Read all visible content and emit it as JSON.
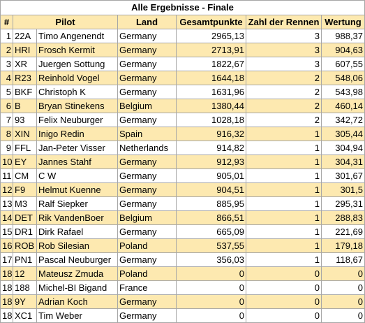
{
  "title": "Alle Ergebnisse - Finale",
  "columns": [
    "#",
    "Pilot",
    "Land",
    "Gesamtpunkte",
    "Zahl der Rennen",
    "Wertung"
  ],
  "rows": [
    {
      "rank": "1",
      "code": "22A",
      "pilot": "Timo Angenendt",
      "land": "Germany",
      "points": "2965,13",
      "races": "3",
      "rating": "988,37"
    },
    {
      "rank": "2",
      "code": "HRI",
      "pilot": "Frosch Kermit",
      "land": "Germany",
      "points": "2713,91",
      "races": "3",
      "rating": "904,63"
    },
    {
      "rank": "3",
      "code": "XR",
      "pilot": "Juergen Sottung",
      "land": "Germany",
      "points": "1822,67",
      "races": "3",
      "rating": "607,55"
    },
    {
      "rank": "4",
      "code": "R23",
      "pilot": "Reinhold Vogel",
      "land": "Germany",
      "points": "1644,18",
      "races": "2",
      "rating": "548,06"
    },
    {
      "rank": "5",
      "code": "BKF",
      "pilot": "Christoph K",
      "land": "Germany",
      "points": "1631,96",
      "races": "2",
      "rating": "543,98"
    },
    {
      "rank": "6",
      "code": "B",
      "pilot": "Bryan Stinekens",
      "land": "Belgium",
      "points": "1380,44",
      "races": "2",
      "rating": "460,14"
    },
    {
      "rank": "7",
      "code": "93",
      "pilot": "Felix Neuburger",
      "land": "Germany",
      "points": "1028,18",
      "races": "2",
      "rating": "342,72"
    },
    {
      "rank": "8",
      "code": "XIN",
      "pilot": "Inigo Redin",
      "land": "Spain",
      "points": "916,32",
      "races": "1",
      "rating": "305,44"
    },
    {
      "rank": "9",
      "code": "FFL",
      "pilot": "Jan-Peter Visser",
      "land": "Netherlands",
      "points": "914,82",
      "races": "1",
      "rating": "304,94"
    },
    {
      "rank": "10",
      "code": "EY",
      "pilot": "Jannes Stahf",
      "land": "Germany",
      "points": "912,93",
      "races": "1",
      "rating": "304,31"
    },
    {
      "rank": "11",
      "code": "CM",
      "pilot": "C W",
      "land": "Germany",
      "points": "905,01",
      "races": "1",
      "rating": "301,67"
    },
    {
      "rank": "12",
      "code": "F9",
      "pilot": "Helmut Kuenne",
      "land": "Germany",
      "points": "904,51",
      "races": "1",
      "rating": "301,5"
    },
    {
      "rank": "13",
      "code": "M3",
      "pilot": "Ralf Siepker",
      "land": "Germany",
      "points": "885,95",
      "races": "1",
      "rating": "295,31"
    },
    {
      "rank": "14",
      "code": "DET",
      "pilot": "Rik VandenBoer",
      "land": "Belgium",
      "points": "866,51",
      "races": "1",
      "rating": "288,83"
    },
    {
      "rank": "15",
      "code": "DR1",
      "pilot": "Dirk Rafael",
      "land": "Germany",
      "points": "665,09",
      "races": "1",
      "rating": "221,69"
    },
    {
      "rank": "16",
      "code": "ROB",
      "pilot": "Rob Silesian",
      "land": "Poland",
      "points": "537,55",
      "races": "1",
      "rating": "179,18"
    },
    {
      "rank": "17",
      "code": "PN1",
      "pilot": "Pascal Neuburger",
      "land": "Germany",
      "points": "356,03",
      "races": "1",
      "rating": "118,67"
    },
    {
      "rank": "18",
      "code": "12",
      "pilot": "Mateusz Zmuda",
      "land": "Poland",
      "points": "0",
      "races": "0",
      "rating": "0"
    },
    {
      "rank": "18",
      "code": "188",
      "pilot": "Michel-BI Bigand",
      "land": "France",
      "points": "0",
      "races": "0",
      "rating": "0"
    },
    {
      "rank": "18",
      "code": "9Y",
      "pilot": "Adrian Koch",
      "land": "Germany",
      "points": "0",
      "races": "0",
      "rating": "0"
    },
    {
      "rank": "18",
      "code": "XC1",
      "pilot": "Tim Weber",
      "land": "Germany",
      "points": "0",
      "races": "0",
      "rating": "0"
    }
  ]
}
